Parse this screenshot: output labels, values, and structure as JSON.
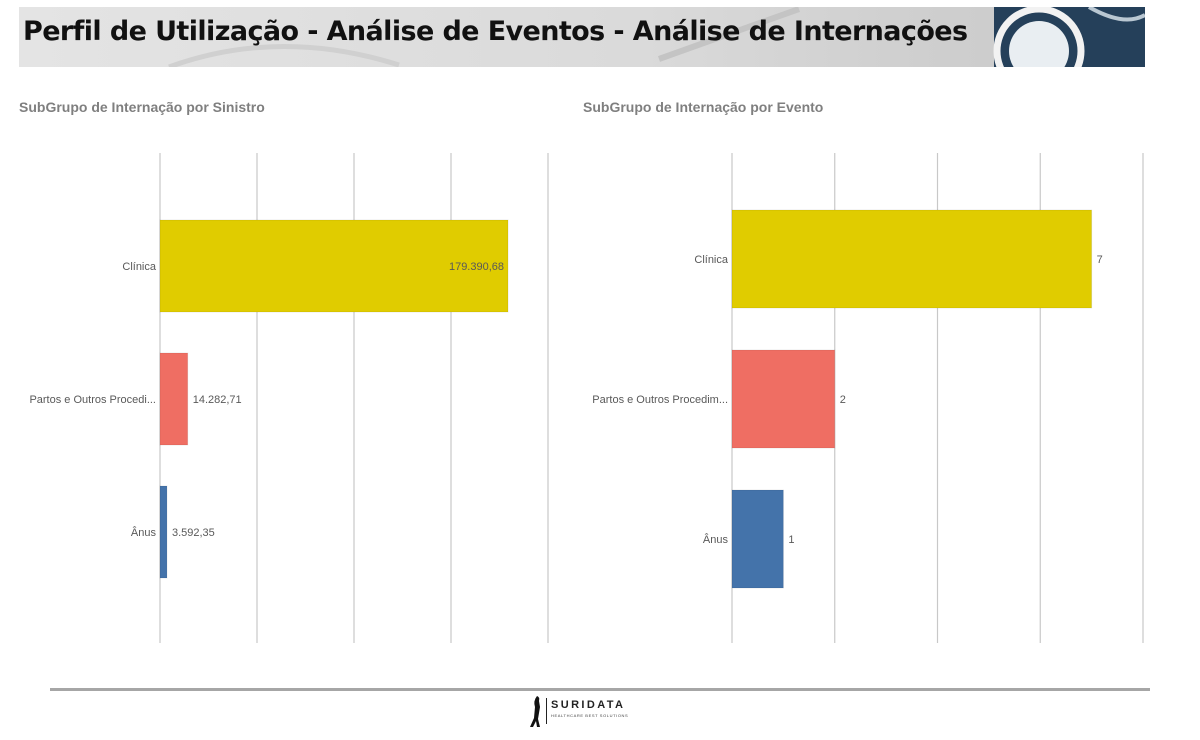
{
  "header": {
    "title": "Perfil de Utilização - Análise de Eventos - Análise de Internações"
  },
  "footer": {
    "logo_name": "SURIDATA",
    "logo_tagline": "HEALTHCARE BEST SOLUTIONS"
  },
  "colors": {
    "clinica": "#e0cc00",
    "partos": "#ef6e63",
    "anus": "#4473aa",
    "banner_dark": "#25405a",
    "gridline": "#c8c8c8"
  },
  "chart_data": [
    {
      "type": "bar",
      "orientation": "horizontal",
      "title": "SubGrupo de Internação por Sinistro",
      "categories": [
        "Clínica",
        "Partos e Outros Procedi...",
        "Ânus"
      ],
      "values": [
        179390.68,
        14282.71,
        3592.35
      ],
      "value_labels": [
        "179.390,68",
        "14.282,71",
        "3.592,35"
      ],
      "xlim": [
        0,
        200000
      ],
      "gridlines": true,
      "tick_labels_shown": false
    },
    {
      "type": "bar",
      "orientation": "horizontal",
      "title": "SubGrupo de Internação por Evento",
      "categories": [
        "Clínica",
        "Partos e Outros Procedim...",
        "Ânus"
      ],
      "values": [
        7,
        2,
        1
      ],
      "value_labels": [
        "7",
        "2",
        "1"
      ],
      "xlim": [
        0,
        8
      ],
      "gridlines": true,
      "tick_labels_shown": false
    }
  ]
}
